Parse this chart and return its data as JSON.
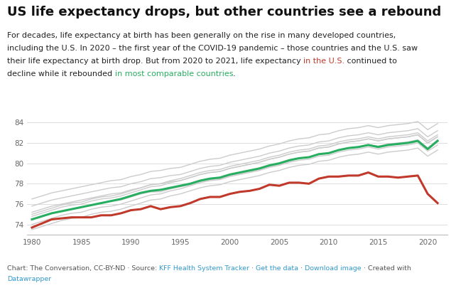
{
  "title": "US life expectancy drops, but other countries see a rebound",
  "subtitle_lines": [
    [
      {
        "text": "For decades, life expectancy at birth has been generally on the rise in many developed countries,",
        "color": "#222222"
      }
    ],
    [
      {
        "text": "including the U.S. In 2020 – the first year of the COVID-19 pandemic – those countries and the U.S. saw",
        "color": "#222222"
      }
    ],
    [
      {
        "text": "their life expectancy at birth drop. But from 2020 to 2021, life expectancy ",
        "color": "#222222"
      },
      {
        "text": "in the U.S.",
        "color": "#c0392b"
      },
      {
        "text": " continued to",
        "color": "#222222"
      }
    ],
    [
      {
        "text": "decline while it rebounded ",
        "color": "#222222"
      },
      {
        "text": "in most comparable countries",
        "color": "#27ae60"
      },
      {
        "text": ".",
        "color": "#222222"
      }
    ]
  ],
  "years": [
    1980,
    1981,
    1982,
    1983,
    1984,
    1985,
    1986,
    1987,
    1988,
    1989,
    1990,
    1991,
    1992,
    1993,
    1994,
    1995,
    1996,
    1997,
    1998,
    1999,
    2000,
    2001,
    2002,
    2003,
    2004,
    2005,
    2006,
    2007,
    2008,
    2009,
    2010,
    2011,
    2012,
    2013,
    2014,
    2015,
    2016,
    2017,
    2018,
    2019,
    2020,
    2021
  ],
  "us_data": [
    73.7,
    74.1,
    74.5,
    74.6,
    74.7,
    74.7,
    74.7,
    74.9,
    74.9,
    75.1,
    75.4,
    75.5,
    75.8,
    75.5,
    75.7,
    75.8,
    76.1,
    76.5,
    76.7,
    76.7,
    77.0,
    77.2,
    77.3,
    77.5,
    77.9,
    77.8,
    78.1,
    78.1,
    78.0,
    78.5,
    78.7,
    78.7,
    78.8,
    78.8,
    79.1,
    78.7,
    78.7,
    78.6,
    78.7,
    78.8,
    77.0,
    76.1
  ],
  "other_countries": [
    [
      74.5,
      74.8,
      75.1,
      75.3,
      75.5,
      75.7,
      75.9,
      76.1,
      76.3,
      76.4,
      76.7,
      77.0,
      77.2,
      77.2,
      77.5,
      77.7,
      77.9,
      78.2,
      78.4,
      78.5,
      78.8,
      79.0,
      79.2,
      79.4,
      79.7,
      79.9,
      80.2,
      80.5,
      80.6,
      80.9,
      81.0,
      81.3,
      81.5,
      81.6,
      81.8,
      81.7,
      81.9,
      82.0,
      82.1,
      82.3,
      81.5,
      82.3
    ],
    [
      75.2,
      75.5,
      75.8,
      76.0,
      76.2,
      76.4,
      76.6,
      76.8,
      77.0,
      77.1,
      77.4,
      77.6,
      77.9,
      78.0,
      78.2,
      78.3,
      78.6,
      78.9,
      79.1,
      79.2,
      79.5,
      79.7,
      79.9,
      80.1,
      80.4,
      80.6,
      80.9,
      81.1,
      81.2,
      81.5,
      81.6,
      81.9,
      82.1,
      82.2,
      82.4,
      82.2,
      82.4,
      82.5,
      82.6,
      82.8,
      82.0,
      82.6
    ],
    [
      75.8,
      76.1,
      76.4,
      76.6,
      76.8,
      77.0,
      77.2,
      77.4,
      77.6,
      77.7,
      78.0,
      78.2,
      78.5,
      78.6,
      78.8,
      78.9,
      79.2,
      79.5,
      79.7,
      79.8,
      80.1,
      80.3,
      80.5,
      80.7,
      81.0,
      81.2,
      81.5,
      81.7,
      81.8,
      82.1,
      82.2,
      82.5,
      82.7,
      82.8,
      83.0,
      82.8,
      83.0,
      83.1,
      83.2,
      83.4,
      82.6,
      83.2
    ],
    [
      76.5,
      76.8,
      77.1,
      77.3,
      77.5,
      77.7,
      77.9,
      78.1,
      78.3,
      78.4,
      78.7,
      78.9,
      79.2,
      79.3,
      79.5,
      79.6,
      79.9,
      80.2,
      80.4,
      80.5,
      80.8,
      81.0,
      81.2,
      81.4,
      81.7,
      81.9,
      82.2,
      82.4,
      82.5,
      82.8,
      82.9,
      83.2,
      83.4,
      83.5,
      83.7,
      83.5,
      83.7,
      83.8,
      83.9,
      84.1,
      83.3,
      83.9
    ],
    [
      73.5,
      73.8,
      74.1,
      74.4,
      74.6,
      74.7,
      75.0,
      75.2,
      75.3,
      75.5,
      75.8,
      76.1,
      76.4,
      76.5,
      76.8,
      77.0,
      77.3,
      77.6,
      77.8,
      77.9,
      78.2,
      78.4,
      78.6,
      78.8,
      79.1,
      79.3,
      79.6,
      79.8,
      79.9,
      80.2,
      80.3,
      80.6,
      80.8,
      80.9,
      81.1,
      80.9,
      81.1,
      81.2,
      81.3,
      81.5,
      80.7,
      81.3
    ],
    [
      74.0,
      74.3,
      74.6,
      74.9,
      75.1,
      75.2,
      75.5,
      75.7,
      75.8,
      76.0,
      76.3,
      76.6,
      76.9,
      77.0,
      77.3,
      77.5,
      77.8,
      78.1,
      78.3,
      78.4,
      78.7,
      78.9,
      79.1,
      79.3,
      79.6,
      79.8,
      80.1,
      80.3,
      80.4,
      80.7,
      80.8,
      81.1,
      81.3,
      81.4,
      81.6,
      81.4,
      81.6,
      81.7,
      81.8,
      82.0,
      81.2,
      81.8
    ],
    [
      75.0,
      75.3,
      75.6,
      75.9,
      76.1,
      76.2,
      76.5,
      76.7,
      76.8,
      77.0,
      77.3,
      77.6,
      77.9,
      78.0,
      78.3,
      78.5,
      78.8,
      79.1,
      79.3,
      79.4,
      79.7,
      79.9,
      80.1,
      80.3,
      80.6,
      80.8,
      81.1,
      81.3,
      81.4,
      81.7,
      81.8,
      82.1,
      82.3,
      82.4,
      82.6,
      82.4,
      82.6,
      82.7,
      82.8,
      83.0,
      82.2,
      82.8
    ],
    [
      74.8,
      75.1,
      75.4,
      75.7,
      75.9,
      76.0,
      76.3,
      76.5,
      76.6,
      76.8,
      77.1,
      77.4,
      77.7,
      77.8,
      78.1,
      78.3,
      78.6,
      78.9,
      79.1,
      79.2,
      79.5,
      79.7,
      79.9,
      80.1,
      80.4,
      80.6,
      80.9,
      81.1,
      81.2,
      81.5,
      81.6,
      81.9,
      82.1,
      82.2,
      82.4,
      82.2,
      82.4,
      82.5,
      82.6,
      82.8,
      82.0,
      82.6
    ]
  ],
  "green_line": [
    74.5,
    74.8,
    75.1,
    75.3,
    75.5,
    75.7,
    75.9,
    76.1,
    76.3,
    76.5,
    76.8,
    77.1,
    77.3,
    77.4,
    77.6,
    77.8,
    78.0,
    78.3,
    78.5,
    78.6,
    78.9,
    79.1,
    79.3,
    79.5,
    79.8,
    80.0,
    80.3,
    80.5,
    80.6,
    80.9,
    81.0,
    81.3,
    81.5,
    81.6,
    81.8,
    81.6,
    81.8,
    81.9,
    82.0,
    82.2,
    81.4,
    82.2
  ],
  "ylim": [
    73.0,
    85.0
  ],
  "yticks": [
    74,
    76,
    78,
    80,
    82,
    84
  ],
  "xticks": [
    1980,
    1985,
    1990,
    1995,
    2000,
    2005,
    2010,
    2015,
    2020
  ],
  "gray_color": "#cccccc",
  "green_color": "#27ae60",
  "red_color": "#c0392b",
  "bg_color": "#ffffff",
  "footer_gray": "#555555",
  "footer_blue": "#3399cc",
  "title_fontsize": 13,
  "subtitle_fontsize": 8.0,
  "footer_fontsize": 6.8
}
